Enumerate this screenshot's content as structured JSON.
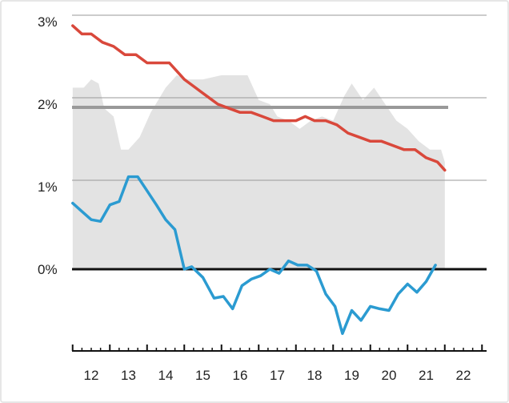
{
  "chart_data": {
    "type": "line",
    "title": "",
    "xlabel": "",
    "ylabel": "",
    "x_ticks": [
      "12",
      "13",
      "14",
      "15",
      "16",
      "17",
      "18",
      "19",
      "20",
      "21",
      "22"
    ],
    "y_ticks": [
      "3%",
      "2%",
      "1%",
      "0%"
    ],
    "ylim": [
      -0.8,
      3.1
    ],
    "xlim": [
      11.5,
      22.6
    ],
    "grid": "horizontal",
    "reference_line": {
      "value": 2.0,
      "color": "#999999"
    },
    "zero_line": {
      "value": 0.0,
      "color": "#111111"
    },
    "series": [
      {
        "kind": "area",
        "color": "#e3e3e3",
        "points": [
          [
            11.5,
            2.2
          ],
          [
            11.8,
            2.2
          ],
          [
            12.0,
            2.3
          ],
          [
            12.2,
            2.25
          ],
          [
            12.35,
            1.95
          ],
          [
            12.6,
            1.85
          ],
          [
            12.8,
            1.45
          ],
          [
            13.0,
            1.45
          ],
          [
            13.3,
            1.6
          ],
          [
            13.6,
            1.9
          ],
          [
            14.0,
            2.2
          ],
          [
            14.3,
            2.35
          ],
          [
            14.6,
            2.3
          ],
          [
            15.0,
            2.3
          ],
          [
            15.5,
            2.35
          ],
          [
            15.8,
            2.35
          ],
          [
            16.0,
            2.35
          ],
          [
            16.2,
            2.35
          ],
          [
            16.5,
            2.05
          ],
          [
            16.8,
            2.0
          ],
          [
            17.0,
            1.85
          ],
          [
            17.3,
            1.8
          ],
          [
            17.6,
            1.7
          ],
          [
            17.9,
            1.8
          ],
          [
            18.2,
            1.85
          ],
          [
            18.5,
            1.8
          ],
          [
            18.8,
            2.1
          ],
          [
            19.0,
            2.25
          ],
          [
            19.3,
            2.05
          ],
          [
            19.6,
            2.2
          ],
          [
            19.9,
            2.0
          ],
          [
            20.2,
            1.8
          ],
          [
            20.5,
            1.7
          ],
          [
            20.8,
            1.55
          ],
          [
            21.1,
            1.45
          ],
          [
            21.4,
            1.45
          ],
          [
            21.5,
            1.3
          ],
          [
            21.5,
            0.0
          ],
          [
            11.5,
            0.0
          ]
        ]
      },
      {
        "kind": "line",
        "color": "#d9483b",
        "points": [
          [
            11.5,
            2.95
          ],
          [
            11.75,
            2.85
          ],
          [
            12.0,
            2.85
          ],
          [
            12.3,
            2.75
          ],
          [
            12.6,
            2.7
          ],
          [
            12.9,
            2.6
          ],
          [
            13.2,
            2.6
          ],
          [
            13.5,
            2.5
          ],
          [
            13.8,
            2.5
          ],
          [
            14.1,
            2.5
          ],
          [
            14.3,
            2.4
          ],
          [
            14.5,
            2.3
          ],
          [
            14.8,
            2.2
          ],
          [
            15.1,
            2.1
          ],
          [
            15.4,
            2.0
          ],
          [
            15.7,
            1.95
          ],
          [
            16.0,
            1.9
          ],
          [
            16.3,
            1.9
          ],
          [
            16.6,
            1.85
          ],
          [
            16.9,
            1.8
          ],
          [
            17.2,
            1.8
          ],
          [
            17.5,
            1.8
          ],
          [
            17.75,
            1.85
          ],
          [
            18.0,
            1.8
          ],
          [
            18.3,
            1.8
          ],
          [
            18.6,
            1.75
          ],
          [
            18.9,
            1.65
          ],
          [
            19.2,
            1.6
          ],
          [
            19.5,
            1.55
          ],
          [
            19.8,
            1.55
          ],
          [
            20.1,
            1.5
          ],
          [
            20.4,
            1.45
          ],
          [
            20.7,
            1.45
          ],
          [
            21.0,
            1.35
          ],
          [
            21.3,
            1.3
          ],
          [
            21.5,
            1.2
          ]
        ]
      },
      {
        "kind": "line",
        "color": "#2b9bd1",
        "points": [
          [
            11.5,
            0.8
          ],
          [
            11.75,
            0.7
          ],
          [
            12.0,
            0.6
          ],
          [
            12.25,
            0.58
          ],
          [
            12.5,
            0.78
          ],
          [
            12.75,
            0.82
          ],
          [
            13.0,
            1.12
          ],
          [
            13.25,
            1.12
          ],
          [
            13.5,
            0.95
          ],
          [
            13.75,
            0.78
          ],
          [
            14.0,
            0.6
          ],
          [
            14.25,
            0.48
          ],
          [
            14.5,
            0.0
          ],
          [
            14.7,
            0.03
          ],
          [
            15.0,
            -0.1
          ],
          [
            15.3,
            -0.35
          ],
          [
            15.55,
            -0.33
          ],
          [
            15.8,
            -0.48
          ],
          [
            16.05,
            -0.2
          ],
          [
            16.3,
            -0.12
          ],
          [
            16.55,
            -0.08
          ],
          [
            16.8,
            0.0
          ],
          [
            17.05,
            -0.05
          ],
          [
            17.3,
            0.1
          ],
          [
            17.55,
            0.05
          ],
          [
            17.8,
            0.05
          ],
          [
            18.05,
            -0.02
          ],
          [
            18.3,
            -0.3
          ],
          [
            18.55,
            -0.45
          ],
          [
            18.75,
            -0.78
          ],
          [
            19.0,
            -0.5
          ],
          [
            19.25,
            -0.62
          ],
          [
            19.5,
            -0.45
          ],
          [
            19.75,
            -0.48
          ],
          [
            20.0,
            -0.5
          ],
          [
            20.25,
            -0.3
          ],
          [
            20.5,
            -0.18
          ],
          [
            20.75,
            -0.28
          ],
          [
            21.0,
            -0.15
          ],
          [
            21.25,
            0.05
          ]
        ]
      }
    ]
  }
}
